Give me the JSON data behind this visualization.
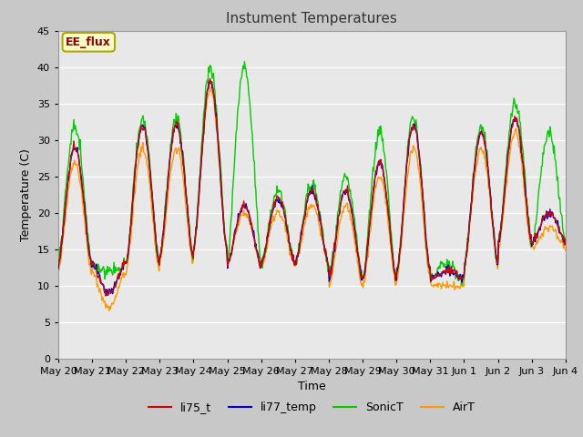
{
  "title": "Instument Temperatures",
  "xlabel": "Time",
  "ylabel": "Temperature (C)",
  "ylim": [
    0,
    45
  ],
  "yticks": [
    0,
    5,
    10,
    15,
    20,
    25,
    30,
    35,
    40,
    45
  ],
  "annotation_text": "EE_flux",
  "annotation_color": "#8b0000",
  "annotation_bg": "#ffffcc",
  "annotation_border": "#aaaa00",
  "series_colors": {
    "li75_t": "#cc0000",
    "li77_temp": "#0000cc",
    "SonicT": "#00cc00",
    "AirT": "#ff9900"
  },
  "fig_bg_color": "#c8c8c8",
  "plot_bg": "#e8e8e8",
  "x_labels": [
    "May 20",
    "May 21",
    "May 22",
    "May 23",
    "May 24",
    "May 25",
    "May 26",
    "May 27",
    "May 28",
    "May 29",
    "May 30",
    "May 31",
    "Jun 1",
    "Jun 2",
    "Jun 3",
    "Jun 4"
  ],
  "line_width": 1.0,
  "num_days": 15,
  "pts_per_day": 48,
  "daily_max_base": [
    29,
    9,
    32,
    32,
    38,
    21,
    22,
    23,
    23,
    27,
    32,
    12,
    31,
    33,
    20
  ],
  "daily_min_base": [
    13,
    13,
    13,
    14,
    15,
    13,
    13,
    13,
    11,
    11,
    12,
    11,
    13,
    16,
    16
  ],
  "sonic_max_extra": [
    3,
    3,
    1,
    1,
    2,
    2,
    1,
    1,
    2,
    4,
    1,
    1,
    1,
    2,
    11
  ],
  "air_max_delta": [
    -2,
    -2,
    -3,
    -3,
    -1,
    -1,
    -2,
    -2,
    -2,
    -2,
    -3,
    -2,
    -2,
    -2,
    -2
  ],
  "air_min_delta": [
    -1,
    -1,
    -1,
    -1,
    0,
    0,
    0,
    0,
    -1,
    -1,
    -1,
    -1,
    0,
    -1,
    -1
  ],
  "noise_seed": 12345
}
